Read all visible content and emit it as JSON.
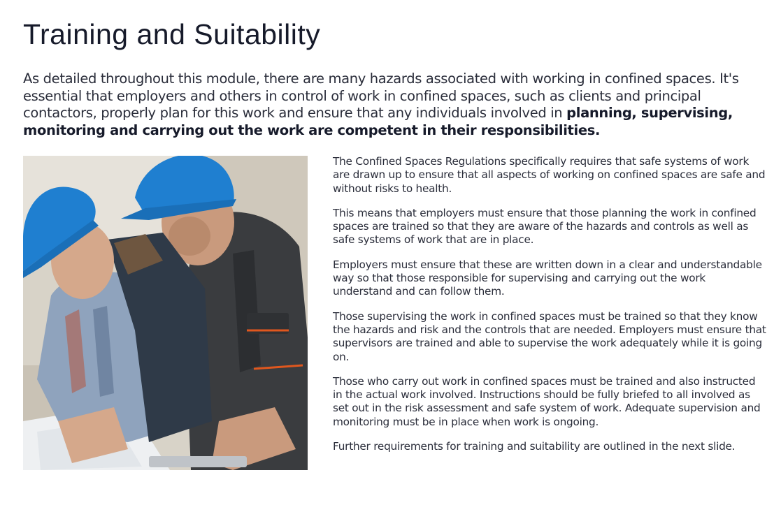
{
  "page": {
    "title": "Training and Suitability",
    "intro_plain": "As detailed throughout this module, there are many hazards associated with working in confined spaces. It's essential that employers and others in control of work in confined spaces, such as clients and principal contactors, properly plan for this work and ensure that any individuals involved in ",
    "intro_bold": "planning, supervising, monitoring and carrying out the work are competent in their responsibilities."
  },
  "image": {
    "subject": "two-workers-hard-hats-photo",
    "colors": {
      "hard_hat": "#1f7fd0",
      "vest": "#3a3c3f",
      "accent": "#e0571e"
    }
  },
  "paragraphs": [
    "The Confined Spaces Regulations specifically requires that safe systems of work are drawn up to ensure that all aspects of working on confined spaces are safe and without risks to health.",
    "This means that employers must ensure that those planning the work in confined spaces are trained so that they are aware of the hazards and controls as well as safe systems of work that are in place.",
    "Employers must ensure that these are written down in a clear and understandable way so that those responsible for supervising and carrying out the work understand and can follow them.",
    "Those supervising the work in confined spaces must be trained so that they know the hazards and risk and the controls that are needed. Employers must ensure that supervisors are trained and able to supervise the work adequately while it is going on.",
    "Those who carry out work in confined spaces must be trained and also instructed in the actual work involved. Instructions should be fully briefed to all involved as set out in the risk assessment and safe system of work. Adequate supervision and monitoring must be in place when work is ongoing.",
    "Further requirements for training and suitability are outlined in the next slide."
  ]
}
